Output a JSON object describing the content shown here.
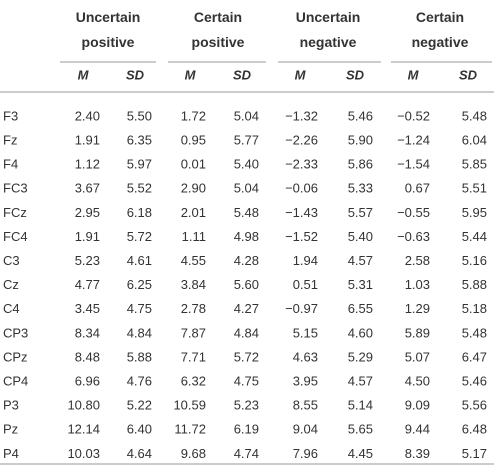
{
  "table": {
    "groups": [
      "Uncertain positive",
      "Certain positive",
      "Uncertain negative",
      "Certain negative"
    ],
    "subheaders": [
      "M",
      "SD",
      "M",
      "SD",
      "M",
      "SD",
      "M",
      "SD"
    ],
    "rows": [
      {
        "label": "F3",
        "values": [
          "2.40",
          "5.50",
          "1.72",
          "5.04",
          "−1.32",
          "5.46",
          "−0.52",
          "5.48"
        ]
      },
      {
        "label": "Fz",
        "values": [
          "1.91",
          "6.35",
          "0.95",
          "5.77",
          "−2.26",
          "5.90",
          "−1.24",
          "6.04"
        ]
      },
      {
        "label": "F4",
        "values": [
          "1.12",
          "5.97",
          "0.01",
          "5.40",
          "−2.33",
          "5.86",
          "−1.54",
          "5.85"
        ]
      },
      {
        "label": "FC3",
        "values": [
          "3.67",
          "5.52",
          "2.90",
          "5.04",
          "−0.06",
          "5.33",
          "0.67",
          "5.51"
        ]
      },
      {
        "label": "FCz",
        "values": [
          "2.95",
          "6.18",
          "2.01",
          "5.48",
          "−1.43",
          "5.57",
          "−0.55",
          "5.95"
        ]
      },
      {
        "label": "FC4",
        "values": [
          "1.91",
          "5.72",
          "1.11",
          "4.98",
          "−1.52",
          "5.40",
          "−0.63",
          "5.44"
        ]
      },
      {
        "label": "C3",
        "values": [
          "5.23",
          "4.61",
          "4.55",
          "4.28",
          "1.94",
          "4.57",
          "2.58",
          "5.16"
        ]
      },
      {
        "label": "Cz",
        "values": [
          "4.77",
          "6.25",
          "3.84",
          "5.60",
          "0.51",
          "5.31",
          "1.03",
          "5.88"
        ]
      },
      {
        "label": "C4",
        "values": [
          "3.45",
          "4.75",
          "2.78",
          "4.27",
          "−0.97",
          "6.55",
          "1.29",
          "5.18"
        ]
      },
      {
        "label": "CP3",
        "values": [
          "8.34",
          "4.84",
          "7.87",
          "4.84",
          "5.15",
          "4.60",
          "5.89",
          "5.48"
        ]
      },
      {
        "label": "CPz",
        "values": [
          "8.48",
          "5.88",
          "7.71",
          "5.72",
          "4.63",
          "5.29",
          "5.07",
          "6.47"
        ]
      },
      {
        "label": "CP4",
        "values": [
          "6.96",
          "4.76",
          "6.32",
          "4.75",
          "3.95",
          "4.57",
          "4.50",
          "5.46"
        ]
      },
      {
        "label": "P3",
        "values": [
          "10.80",
          "5.22",
          "10.59",
          "5.23",
          "8.55",
          "5.14",
          "9.09",
          "5.56"
        ]
      },
      {
        "label": "Pz",
        "values": [
          "12.14",
          "6.40",
          "11.72",
          "6.19",
          "9.04",
          "5.65",
          "9.44",
          "6.48"
        ]
      },
      {
        "label": "P4",
        "values": [
          "10.03",
          "4.64",
          "9.68",
          "4.74",
          "7.96",
          "4.45",
          "8.39",
          "5.17"
        ]
      }
    ]
  }
}
